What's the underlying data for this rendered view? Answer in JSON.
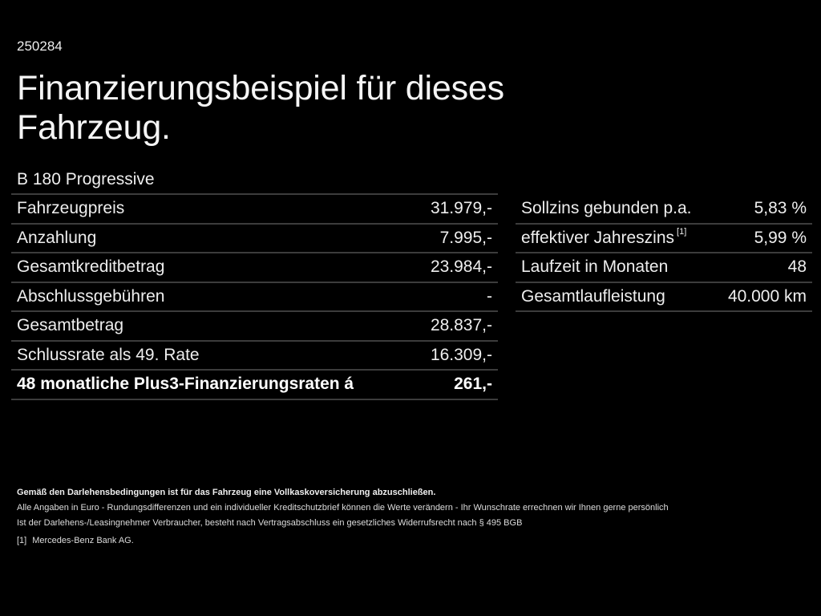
{
  "header": {
    "code": "250284",
    "title": "Finanzierungsbeispiel für dieses Fahrzeug.",
    "model": "B 180 Progressive"
  },
  "left_table": {
    "rows": [
      {
        "label": "Fahrzeugpreis",
        "value": "31.979,-"
      },
      {
        "label": "Anzahlung",
        "value": "7.995,-"
      },
      {
        "label": "Gesamtkreditbetrag",
        "value": "23.984,-"
      },
      {
        "label": "Abschlussgebühren",
        "value": "-"
      },
      {
        "label": "Gesamtbetrag",
        "value": "28.837,-"
      },
      {
        "label": "Schlussrate als 49. Rate",
        "value": "16.309,-"
      },
      {
        "label": "48 monatliche Plus3-Finanzierungsraten á",
        "value": "261,-"
      }
    ]
  },
  "right_table": {
    "rows": [
      {
        "label": "Sollzins gebunden p.a.",
        "ref": "",
        "value": "5,83 %"
      },
      {
        "label": "effektiver Jahreszins",
        "ref": "[1]",
        "value": "5,99 %"
      },
      {
        "label": "Laufzeit in Monaten",
        "ref": "",
        "value": "48"
      },
      {
        "label": "Gesamtlaufleistung",
        "ref": "",
        "value": "40.000 km"
      }
    ]
  },
  "footer": {
    "insurance_notice": "Gemäß den Darlehensbedingungen ist für das Fahrzeug eine Vollkaskoversicherung abzuschließen.",
    "disclaimer": "Alle Angaben in Euro - Rundungsdifferenzen und ein individueller Kreditschutzbrief können die Werte verändern - Ihr Wunschrate errechnen wir Ihnen gerne persönlich",
    "withdrawal": "Ist der Darlehens-/Leasingnehmer Verbraucher, besteht nach Vertragsabschluss ein gesetzliches Widerrufsrecht nach § 495 BGB",
    "footnote_mark": "[1]",
    "footnote_text": "Mercedes-Benz Bank AG."
  },
  "colors": {
    "background": "#000000",
    "text": "#f2f2f2",
    "divider": "#3c3c3c"
  }
}
